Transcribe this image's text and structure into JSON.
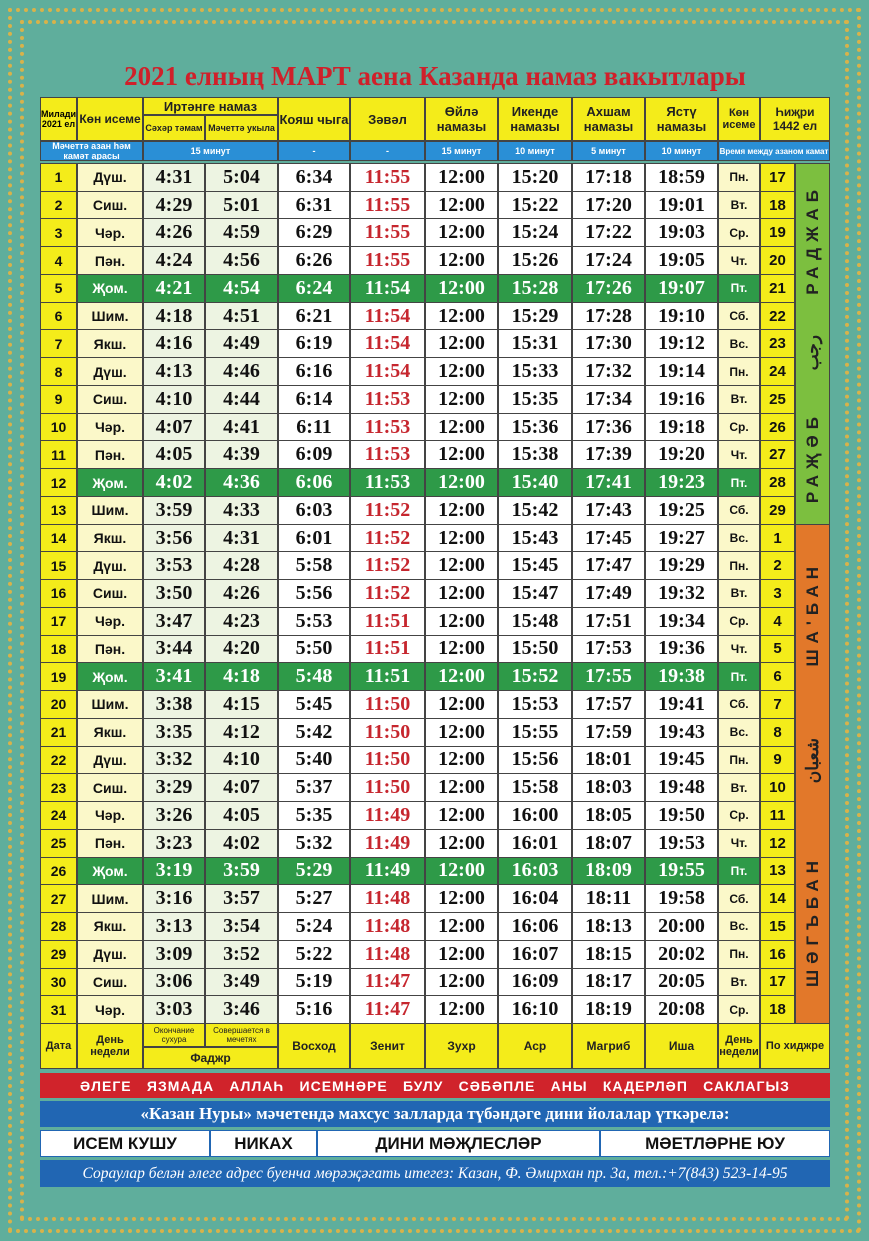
{
  "title": "2021 елның МАРТ аена Казанда намаз вакытлары",
  "header": {
    "date": "Милади 2021 ел",
    "day": "Көн исеме",
    "fajr": "Иртәнге намаз",
    "suhur": "Сәхәр тәмам",
    "mosque": "Мәчеттә укыла",
    "sunrise": "Кояш чыга",
    "zawal": "Зәвәл",
    "zuhr": "Өйлә намазы",
    "asr": "Икенде намазы",
    "maghrib": "Ахшам намазы",
    "isha": "Ястү намазы",
    "day_ru": "Көн исеме",
    "hijri": "Һиҗри 1442 ел"
  },
  "interval_row": {
    "label": "Мәчеттә азан һәм камәт арасы",
    "fajr": "15 минут",
    "sunrise": "-",
    "zawal": "-",
    "zuhr": "15 минут",
    "asr": "10 минут",
    "maghrib": "5 минут",
    "isha": "10 минут",
    "label_ru": "Время между азаном камат"
  },
  "table": {
    "highlighted_rows": [
      4,
      11,
      18,
      25
    ],
    "rows": [
      [
        "1",
        "Дүш.",
        "4:31",
        "5:04",
        "6:34",
        "11:55",
        "12:00",
        "15:20",
        "17:18",
        "18:59",
        "Пн.",
        "17"
      ],
      [
        "2",
        "Сиш.",
        "4:29",
        "5:01",
        "6:31",
        "11:55",
        "12:00",
        "15:22",
        "17:20",
        "19:01",
        "Вт.",
        "18"
      ],
      [
        "3",
        "Чәр.",
        "4:26",
        "4:59",
        "6:29",
        "11:55",
        "12:00",
        "15:24",
        "17:22",
        "19:03",
        "Ср.",
        "19"
      ],
      [
        "4",
        "Пән.",
        "4:24",
        "4:56",
        "6:26",
        "11:55",
        "12:00",
        "15:26",
        "17:24",
        "19:05",
        "Чт.",
        "20"
      ],
      [
        "5",
        "Җом.",
        "4:21",
        "4:54",
        "6:24",
        "11:54",
        "12:00",
        "15:28",
        "17:26",
        "19:07",
        "Пт.",
        "21"
      ],
      [
        "6",
        "Шим.",
        "4:18",
        "4:51",
        "6:21",
        "11:54",
        "12:00",
        "15:29",
        "17:28",
        "19:10",
        "Сб.",
        "22"
      ],
      [
        "7",
        "Якш.",
        "4:16",
        "4:49",
        "6:19",
        "11:54",
        "12:00",
        "15:31",
        "17:30",
        "19:12",
        "Вс.",
        "23"
      ],
      [
        "8",
        "Дүш.",
        "4:13",
        "4:46",
        "6:16",
        "11:54",
        "12:00",
        "15:33",
        "17:32",
        "19:14",
        "Пн.",
        "24"
      ],
      [
        "9",
        "Сиш.",
        "4:10",
        "4:44",
        "6:14",
        "11:53",
        "12:00",
        "15:35",
        "17:34",
        "19:16",
        "Вт.",
        "25"
      ],
      [
        "10",
        "Чәр.",
        "4:07",
        "4:41",
        "6:11",
        "11:53",
        "12:00",
        "15:36",
        "17:36",
        "19:18",
        "Ср.",
        "26"
      ],
      [
        "11",
        "Пән.",
        "4:05",
        "4:39",
        "6:09",
        "11:53",
        "12:00",
        "15:38",
        "17:39",
        "19:20",
        "Чт.",
        "27"
      ],
      [
        "12",
        "Җом.",
        "4:02",
        "4:36",
        "6:06",
        "11:53",
        "12:00",
        "15:40",
        "17:41",
        "19:23",
        "Пт.",
        "28"
      ],
      [
        "13",
        "Шим.",
        "3:59",
        "4:33",
        "6:03",
        "11:52",
        "12:00",
        "15:42",
        "17:43",
        "19:25",
        "Сб.",
        "29"
      ],
      [
        "14",
        "Якш.",
        "3:56",
        "4:31",
        "6:01",
        "11:52",
        "12:00",
        "15:43",
        "17:45",
        "19:27",
        "Вс.",
        "1"
      ],
      [
        "15",
        "Дүш.",
        "3:53",
        "4:28",
        "5:58",
        "11:52",
        "12:00",
        "15:45",
        "17:47",
        "19:29",
        "Пн.",
        "2"
      ],
      [
        "16",
        "Сиш.",
        "3:50",
        "4:26",
        "5:56",
        "11:52",
        "12:00",
        "15:47",
        "17:49",
        "19:32",
        "Вт.",
        "3"
      ],
      [
        "17",
        "Чәр.",
        "3:47",
        "4:23",
        "5:53",
        "11:51",
        "12:00",
        "15:48",
        "17:51",
        "19:34",
        "Ср.",
        "4"
      ],
      [
        "18",
        "Пән.",
        "3:44",
        "4:20",
        "5:50",
        "11:51",
        "12:00",
        "15:50",
        "17:53",
        "19:36",
        "Чт.",
        "5"
      ],
      [
        "19",
        "Җом.",
        "3:41",
        "4:18",
        "5:48",
        "11:51",
        "12:00",
        "15:52",
        "17:55",
        "19:38",
        "Пт.",
        "6"
      ],
      [
        "20",
        "Шим.",
        "3:38",
        "4:15",
        "5:45",
        "11:50",
        "12:00",
        "15:53",
        "17:57",
        "19:41",
        "Сб.",
        "7"
      ],
      [
        "21",
        "Якш.",
        "3:35",
        "4:12",
        "5:42",
        "11:50",
        "12:00",
        "15:55",
        "17:59",
        "19:43",
        "Вс.",
        "8"
      ],
      [
        "22",
        "Дүш.",
        "3:32",
        "4:10",
        "5:40",
        "11:50",
        "12:00",
        "15:56",
        "18:01",
        "19:45",
        "Пн.",
        "9"
      ],
      [
        "23",
        "Сиш.",
        "3:29",
        "4:07",
        "5:37",
        "11:50",
        "12:00",
        "15:58",
        "18:03",
        "19:48",
        "Вт.",
        "10"
      ],
      [
        "24",
        "Чәр.",
        "3:26",
        "4:05",
        "5:35",
        "11:49",
        "12:00",
        "16:00",
        "18:05",
        "19:50",
        "Ср.",
        "11"
      ],
      [
        "25",
        "Пән.",
        "3:23",
        "4:02",
        "5:32",
        "11:49",
        "12:00",
        "16:01",
        "18:07",
        "19:53",
        "Чт.",
        "12"
      ],
      [
        "26",
        "Җом.",
        "3:19",
        "3:59",
        "5:29",
        "11:49",
        "12:00",
        "16:03",
        "18:09",
        "19:55",
        "Пт.",
        "13"
      ],
      [
        "27",
        "Шим.",
        "3:16",
        "3:57",
        "5:27",
        "11:48",
        "12:00",
        "16:04",
        "18:11",
        "19:58",
        "Сб.",
        "14"
      ],
      [
        "28",
        "Якш.",
        "3:13",
        "3:54",
        "5:24",
        "11:48",
        "12:00",
        "16:06",
        "18:13",
        "20:00",
        "Вс.",
        "15"
      ],
      [
        "29",
        "Дүш.",
        "3:09",
        "3:52",
        "5:22",
        "11:48",
        "12:00",
        "16:07",
        "18:15",
        "20:02",
        "Пн.",
        "16"
      ],
      [
        "30",
        "Сиш.",
        "3:06",
        "3:49",
        "5:19",
        "11:47",
        "12:00",
        "16:09",
        "18:17",
        "20:05",
        "Вт.",
        "17"
      ],
      [
        "31",
        "Чәр.",
        "3:03",
        "3:46",
        "5:16",
        "11:47",
        "12:00",
        "16:10",
        "18:19",
        "20:08",
        "Ср.",
        "18"
      ]
    ]
  },
  "months": [
    {
      "rows": 13,
      "color": "#7cbf3f",
      "names": [
        "РАДЖАБ",
        "رجب",
        "РАҖӘБ"
      ]
    },
    {
      "rows": 18,
      "color": "#e2782a",
      "names": [
        "ША'БАН",
        "شعبان",
        "ШӘГЪБАН"
      ]
    }
  ],
  "footer_header": {
    "date": "Дата",
    "day": "День недели",
    "suhur": "Окончание сухура",
    "mosque": "Совершается в мечетях",
    "fajr": "Фаджр",
    "sunrise": "Восход",
    "zawal": "Зенит",
    "zuhr": "Зухр",
    "asr": "Аср",
    "maghrib": "Магриб",
    "isha": "Иша",
    "day_ru": "День недели",
    "hijri": "По хиджре"
  },
  "warning": [
    "ӘЛЕГЕ",
    "ЯЗМАДА",
    "АЛЛАҺ",
    "ИСЕМНӘРЕ",
    "БУЛУ",
    "СӘБӘПЛЕ",
    "АНЫ",
    "КАДЕРЛӘП",
    "САКЛАГЫЗ"
  ],
  "services_title": "«Казан Нуры» мәчетендә махсус залларда түбәндәге дини йолалар үткәрелә:",
  "services": [
    "ИСЕМ КУШУ",
    "НИКАХ",
    "ДИНИ МӘҖЛЕСЛӘР",
    "МӘЕТЛӘРНЕ ЮУ"
  ],
  "contact": "Сораулар белән әлеге адрес буенча мөрәҗәгать итегез: Казан, Ф. Әмирхан пр. 3а, тел.:+7(843) 523-14-95"
}
